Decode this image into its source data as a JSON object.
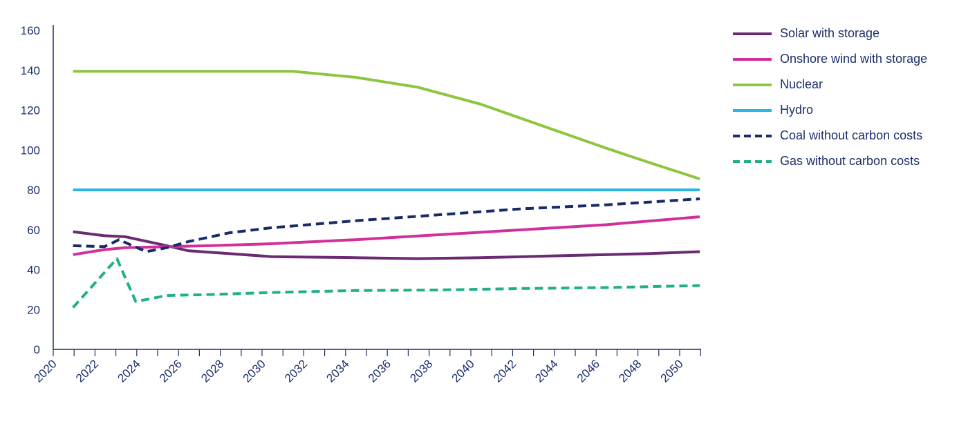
{
  "chart_data": {
    "type": "line",
    "title": "",
    "xlabel": "",
    "ylabel": "",
    "ylim": [
      0,
      160
    ],
    "xlim": [
      2020,
      2050
    ],
    "y_ticks": [
      0,
      20,
      40,
      60,
      80,
      100,
      120,
      140,
      160
    ],
    "x_tick_labels": [
      "2020",
      "2022",
      "2024",
      "2026",
      "2028",
      "2030",
      "2032",
      "2034",
      "2036",
      "2038",
      "2040",
      "2042",
      "2044",
      "2046",
      "2048",
      "2050"
    ],
    "grid": false,
    "legend_position": "right",
    "series": [
      {
        "name": "Solar with storage",
        "color": "#6b2a73",
        "dash": "solid",
        "points": [
          [
            2020.5,
            59
          ],
          [
            2022,
            57
          ],
          [
            2023,
            56.5
          ],
          [
            2025,
            52
          ],
          [
            2026,
            49.5
          ],
          [
            2028,
            48
          ],
          [
            2030,
            46.5
          ],
          [
            2034,
            46
          ],
          [
            2037,
            45.5
          ],
          [
            2040,
            46
          ],
          [
            2044,
            47
          ],
          [
            2048,
            48
          ],
          [
            2050.5,
            49
          ]
        ]
      },
      {
        "name": "Onshore wind with storage",
        "color": "#d12f9b",
        "dash": "solid",
        "points": [
          [
            2020.5,
            47.5
          ],
          [
            2022,
            50
          ],
          [
            2023,
            51
          ],
          [
            2025,
            51.5
          ],
          [
            2027,
            52
          ],
          [
            2030,
            53
          ],
          [
            2034,
            55
          ],
          [
            2038,
            57.5
          ],
          [
            2042,
            60
          ],
          [
            2046,
            62.5
          ],
          [
            2050.5,
            66.5
          ]
        ]
      },
      {
        "name": "Nuclear",
        "color": "#8cc63f",
        "dash": "solid",
        "points": [
          [
            2020.5,
            139.5
          ],
          [
            2025,
            139.5
          ],
          [
            2031,
            139.5
          ],
          [
            2034,
            136.5
          ],
          [
            2037,
            131.5
          ],
          [
            2040,
            123
          ],
          [
            2043,
            112
          ],
          [
            2046,
            101
          ],
          [
            2048,
            94
          ],
          [
            2050.5,
            85.5
          ]
        ]
      },
      {
        "name": "Hydro",
        "color": "#29b6e3",
        "dash": "solid",
        "points": [
          [
            2020.5,
            80
          ],
          [
            2050.5,
            80
          ]
        ]
      },
      {
        "name": "Coal without carbon costs",
        "color": "#172b6b",
        "dash": "dashed",
        "points": [
          [
            2020.5,
            52
          ],
          [
            2022,
            51.5
          ],
          [
            2022.7,
            55
          ],
          [
            2024,
            49
          ],
          [
            2025,
            51
          ],
          [
            2026,
            54
          ],
          [
            2028,
            58.5
          ],
          [
            2030,
            61
          ],
          [
            2034,
            64.5
          ],
          [
            2038,
            67.5
          ],
          [
            2042,
            70.5
          ],
          [
            2046,
            72.5
          ],
          [
            2050.5,
            75.5
          ]
        ]
      },
      {
        "name": "Gas without carbon costs",
        "color": "#1fb08a",
        "dash": "dashed",
        "points": [
          [
            2020.5,
            21
          ],
          [
            2022.6,
            45.5
          ],
          [
            2023.5,
            24
          ],
          [
            2025,
            27
          ],
          [
            2027,
            27.5
          ],
          [
            2030,
            28.5
          ],
          [
            2034,
            29.5
          ],
          [
            2038,
            29.8
          ],
          [
            2042,
            30.5
          ],
          [
            2046,
            31
          ],
          [
            2050.5,
            32
          ]
        ]
      }
    ]
  }
}
